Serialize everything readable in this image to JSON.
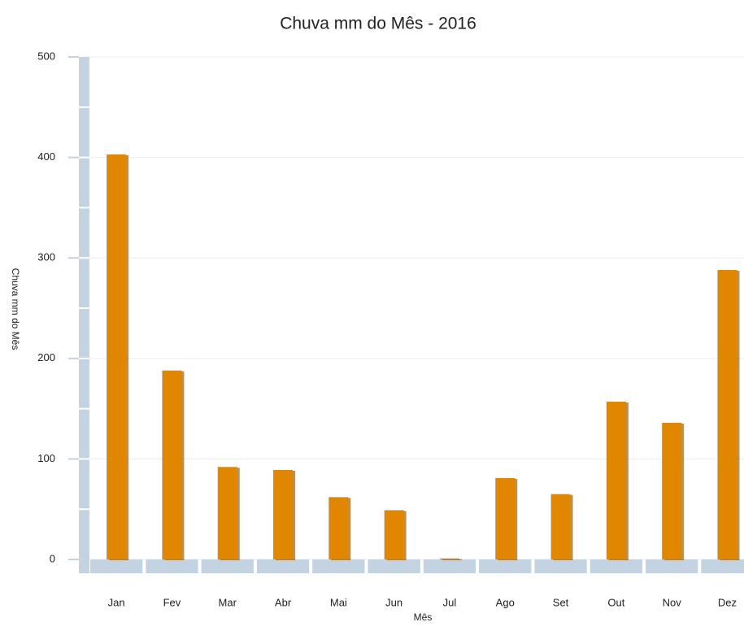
{
  "chart_data": {
    "type": "bar",
    "title": "Chuva mm do Mês - 2016",
    "x_label": "Mês",
    "y_label": "Chuva mm do Mês",
    "categories": [
      "Jan",
      "Fev",
      "Mar",
      "Abr",
      "Mai",
      "Jun",
      "Jul",
      "Ago",
      "Set",
      "Out",
      "Nov",
      "Dez"
    ],
    "values": [
      403,
      188,
      92,
      89,
      62,
      49,
      1,
      81,
      65,
      157,
      136,
      288
    ],
    "color": "#e08600",
    "ylim": [
      0,
      500
    ],
    "yticks": [
      0,
      100,
      200,
      300,
      400,
      500
    ],
    "grid": true
  }
}
